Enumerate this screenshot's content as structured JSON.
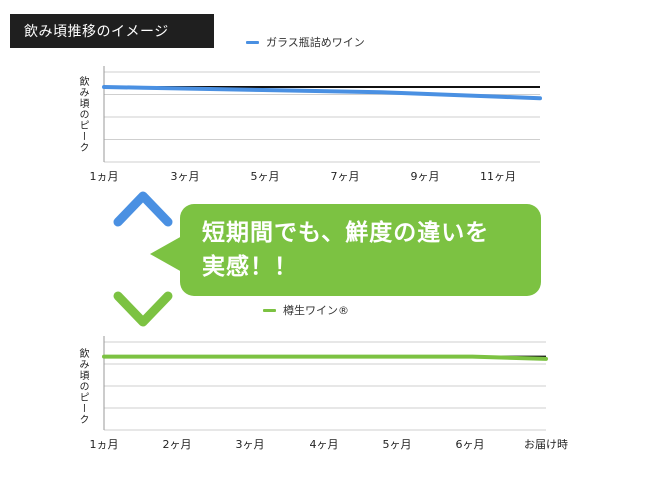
{
  "title": "飲み頃推移のイメージ",
  "callout": {
    "line1": "短期間でも、鮮度の違いを",
    "line2": "実感！！"
  },
  "colors": {
    "glass": "#4a90e2",
    "keg": "#7cc242",
    "peak": "#111111",
    "grid": "#cfcfcf"
  },
  "chart_data": [
    {
      "type": "line",
      "title": "",
      "ylabel": "飲み頃のピーク",
      "xlabel": "",
      "categories": [
        "1ヵ月",
        "3ヶ月",
        "5ヶ月",
        "7ヶ月",
        "9ヶ月",
        "11ヶ月"
      ],
      "x": [
        1,
        2,
        3,
        4,
        5,
        6,
        7,
        8,
        9,
        10,
        11,
        12
      ],
      "peak_level": 100,
      "series": [
        {
          "name": "ガラス瓶詰めワイン",
          "values": [
            100,
            99,
            98,
            97,
            96,
            95,
            94,
            93,
            91,
            89,
            87,
            85
          ]
        }
      ],
      "ylim": [
        0,
        120
      ],
      "grid": true,
      "legend": "top"
    },
    {
      "type": "line",
      "title": "",
      "ylabel": "飲み頃のピーク",
      "xlabel": "",
      "categories": [
        "1ヵ月",
        "2ヶ月",
        "3ヶ月",
        "4ヶ月",
        "5ヶ月",
        "6ヶ月",
        "お届け時"
      ],
      "x": [
        1,
        2,
        3,
        4,
        5,
        6,
        7
      ],
      "peak_level": 100,
      "series": [
        {
          "name": "樽生ワイン®",
          "values": [
            100,
            100,
            100,
            100,
            100,
            100,
            97
          ]
        }
      ],
      "ylim": [
        0,
        120
      ],
      "grid": true,
      "legend": "top"
    }
  ]
}
